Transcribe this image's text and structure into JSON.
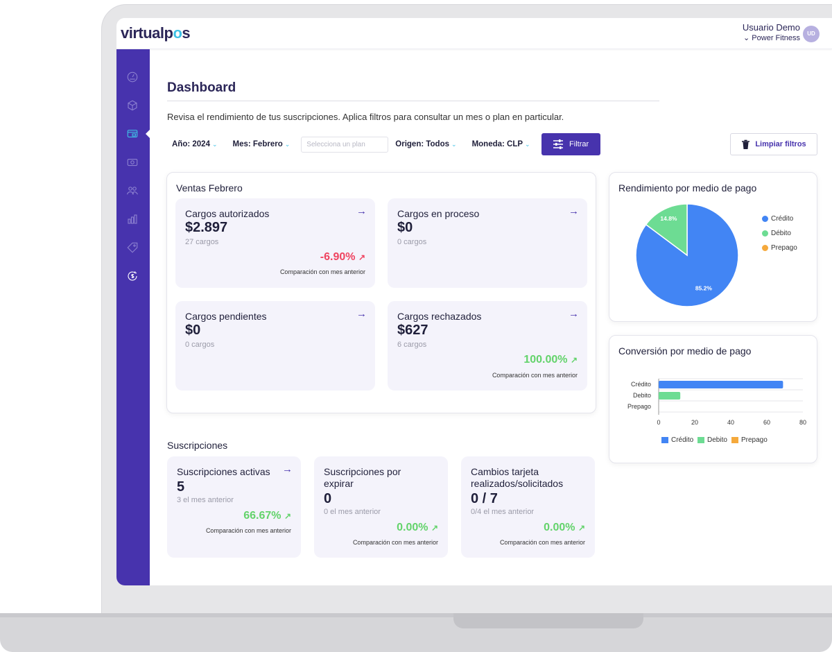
{
  "brand": {
    "logo_prefix": "virtualp",
    "logo_o": "o",
    "logo_suffix": "s"
  },
  "user": {
    "name": "Usuario Demo",
    "org": "⌄ Power Fitness",
    "initials": "UD"
  },
  "sidebar": {
    "items": [
      {
        "icon": "speedometer-icon"
      },
      {
        "icon": "cube-icon"
      },
      {
        "icon": "credit-card-icon",
        "active": true
      },
      {
        "icon": "payments-icon"
      },
      {
        "icon": "users-icon"
      },
      {
        "icon": "bar-chart-icon"
      },
      {
        "icon": "tag-icon"
      },
      {
        "icon": "money-refresh-icon"
      }
    ]
  },
  "page": {
    "title": "Dashboard",
    "subtitle": "Revisa el rendimiento de tus suscripciones. Aplica filtros para consultar un mes o plan en particular."
  },
  "filters": {
    "year": "Año: 2024",
    "month": "Mes: Febrero",
    "plan_placeholder": "Selecciona un plan",
    "origin": "Origen: Todos",
    "currency": "Moneda: CLP",
    "chevron": "⌄",
    "filter_button": "Filtrar",
    "clear_button": "Limpiar filtros"
  },
  "sales": {
    "title": "Ventas Febrero",
    "arrow": "→",
    "cards": [
      {
        "title": "Cargos autorizados",
        "value": "$2.897",
        "sub": "27 cargos",
        "pct": "-6.90%",
        "trend": "↗",
        "cmp": "Comparación con mes anterior"
      },
      {
        "title": "Cargos en proceso",
        "value": "$0",
        "sub": "0 cargos"
      },
      {
        "title": "Cargos pendientes",
        "value": "$0",
        "sub": "0 cargos"
      },
      {
        "title": "Cargos rechazados",
        "value": "$627",
        "sub": "6 cargos",
        "pct": "100.00%",
        "trend": "↗",
        "cmp": "Comparación con mes anterior"
      }
    ]
  },
  "subscriptions": {
    "title": "Suscripciones",
    "cards": [
      {
        "title": "Suscripciones activas",
        "value": "5",
        "sub": "3 el mes anterior",
        "pct": "66.67%",
        "trend": "↗",
        "cmp": "Comparación con mes anterior"
      },
      {
        "title_line1": "Suscripciones por",
        "title_line2": "expirar",
        "value": "0",
        "sub": "0 el mes anterior",
        "pct": "0.00%",
        "trend": "↗",
        "cmp": "Comparación con mes anterior"
      },
      {
        "title_line1": "Cambios tarjeta",
        "title_line2": "realizados/solicitados",
        "value": "0 / 7",
        "sub": "0/4 el mes anterior",
        "pct": "0.00%",
        "trend": "↗",
        "cmp": "Comparación con mes anterior"
      }
    ]
  },
  "colors": {
    "credito": "#4285f4",
    "debito": "#6ddc93",
    "prepago": "#f5a93c",
    "brand": "#4733ad",
    "accent": "#3ec1e6"
  },
  "chart_data": [
    {
      "type": "pie",
      "title": "Rendimiento por medio de pago",
      "categories": [
        "Crédito",
        "Débito",
        "Prepago"
      ],
      "values": [
        85.2,
        14.8,
        0
      ],
      "labels": [
        "85.2%",
        "14.8%",
        ""
      ],
      "legend": "right"
    },
    {
      "type": "bar",
      "orientation": "horizontal",
      "title": "Conversión por medio de pago",
      "categories": [
        "Crédito",
        "Debito",
        "Prepago"
      ],
      "series": [
        {
          "name": "Crédito",
          "values": [
            69,
            0,
            0
          ]
        },
        {
          "name": "Debito",
          "values": [
            0,
            12,
            0
          ]
        },
        {
          "name": "Prepago",
          "values": [
            0,
            0,
            0
          ]
        }
      ],
      "xlim": [
        0,
        80
      ],
      "xticks": [
        "0",
        "20",
        "40",
        "60",
        "80"
      ],
      "legend": "bottom"
    }
  ]
}
